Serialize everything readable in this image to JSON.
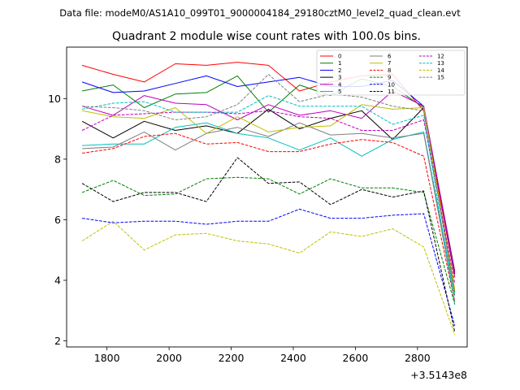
{
  "chart_data": {
    "type": "line",
    "suptitle": "Data file: modeM0/AS1A10_099T01_9000004184_29180cztM0_level2_quad_clean.evt",
    "title": "Quadrant 2 module wise count rates with 100.0s bins.",
    "xlabel": "",
    "ylabel": "",
    "x_offset_label": "+3.5143e8",
    "xlim": [
      1670,
      2960
    ],
    "ylim": [
      1.8,
      11.7
    ],
    "x_ticks": [
      1800,
      2000,
      2200,
      2400,
      2600,
      2800
    ],
    "y_ticks": [
      2,
      4,
      6,
      8,
      10
    ],
    "x": [
      1720,
      1820,
      1920,
      2020,
      2120,
      2220,
      2320,
      2420,
      2520,
      2620,
      2720,
      2820,
      2920
    ],
    "legend_position": "top-right",
    "series": [
      {
        "name": "0",
        "color": "#ff0000",
        "dashed": false,
        "values": [
          11.1,
          10.8,
          10.55,
          11.15,
          11.1,
          11.2,
          11.1,
          10.25,
          10.55,
          10.75,
          10.8,
          9.6,
          4.1
        ]
      },
      {
        "name": "1",
        "color": "#008000",
        "dashed": false,
        "values": [
          10.25,
          10.45,
          9.7,
          10.15,
          10.2,
          10.75,
          9.55,
          10.45,
          10.1,
          10.65,
          10.4,
          9.7,
          3.6
        ]
      },
      {
        "name": "2",
        "color": "#0000ff",
        "dashed": false,
        "values": [
          10.55,
          10.2,
          10.25,
          10.5,
          10.75,
          10.4,
          10.55,
          10.7,
          10.4,
          10.4,
          10.6,
          9.75,
          4.2
        ]
      },
      {
        "name": "3",
        "color": "#000000",
        "dashed": false,
        "values": [
          9.25,
          8.7,
          9.25,
          8.95,
          9.1,
          8.85,
          9.65,
          9.0,
          9.35,
          9.6,
          8.65,
          9.7,
          4.3
        ]
      },
      {
        "name": "4",
        "color": "#bf00bf",
        "dashed": false,
        "values": [
          9.75,
          9.45,
          10.1,
          9.85,
          9.8,
          9.3,
          9.8,
          9.45,
          9.6,
          9.35,
          10.25,
          9.75,
          4.25
        ]
      },
      {
        "name": "5",
        "color": "#00bfbf",
        "dashed": false,
        "values": [
          8.45,
          8.5,
          8.5,
          9.05,
          9.2,
          8.85,
          8.7,
          8.3,
          8.7,
          8.1,
          8.65,
          8.9,
          3.5
        ]
      },
      {
        "name": "6",
        "color": "#7f7f7f",
        "dashed": false,
        "values": [
          8.35,
          8.4,
          8.9,
          8.3,
          8.85,
          9.05,
          8.75,
          9.2,
          8.8,
          8.85,
          8.7,
          8.85,
          3.3
        ]
      },
      {
        "name": "7",
        "color": "#bfbf00",
        "dashed": false,
        "values": [
          9.6,
          9.4,
          9.35,
          9.7,
          8.85,
          9.4,
          8.9,
          9.05,
          9.1,
          9.8,
          9.65,
          9.7,
          3.7
        ]
      },
      {
        "name": "8",
        "color": "#ff0000",
        "dashed": true,
        "values": [
          8.2,
          8.35,
          8.75,
          8.85,
          8.5,
          8.55,
          8.25,
          8.25,
          8.5,
          8.65,
          8.55,
          8.1,
          3.3
        ]
      },
      {
        "name": "9",
        "color": "#008000",
        "dashed": true,
        "values": [
          6.9,
          7.3,
          6.8,
          6.85,
          7.35,
          7.4,
          7.35,
          6.85,
          7.35,
          7.05,
          7.05,
          6.9,
          3.2
        ]
      },
      {
        "name": "10",
        "color": "#0000ff",
        "dashed": true,
        "values": [
          6.05,
          5.9,
          5.95,
          5.95,
          5.85,
          5.95,
          5.95,
          6.35,
          6.05,
          6.05,
          6.15,
          6.2,
          2.5
        ]
      },
      {
        "name": "11",
        "color": "#000000",
        "dashed": true,
        "values": [
          7.2,
          6.6,
          6.9,
          6.9,
          6.6,
          8.05,
          7.2,
          7.25,
          6.5,
          7.0,
          6.75,
          6.95,
          2.3
        ]
      },
      {
        "name": "12",
        "color": "#bf00bf",
        "dashed": true,
        "values": [
          8.95,
          9.45,
          9.5,
          9.55,
          9.55,
          9.5,
          9.6,
          9.4,
          9.35,
          8.95,
          8.95,
          9.3,
          3.9
        ]
      },
      {
        "name": "13",
        "color": "#00bfbf",
        "dashed": true,
        "values": [
          9.65,
          9.85,
          9.9,
          9.55,
          9.55,
          9.55,
          10.1,
          9.75,
          9.75,
          9.75,
          9.15,
          9.45,
          3.2
        ]
      },
      {
        "name": "14",
        "color": "#bfbf00",
        "dashed": true,
        "values": [
          5.3,
          5.95,
          5.0,
          5.5,
          5.55,
          5.3,
          5.2,
          4.9,
          5.6,
          5.45,
          5.7,
          5.1,
          2.2
        ]
      },
      {
        "name": "15",
        "color": "#7f7f7f",
        "dashed": true,
        "values": [
          9.75,
          9.7,
          9.6,
          9.3,
          9.4,
          9.8,
          10.8,
          9.9,
          10.15,
          10.05,
          9.75,
          9.6,
          3.5
        ]
      }
    ]
  }
}
